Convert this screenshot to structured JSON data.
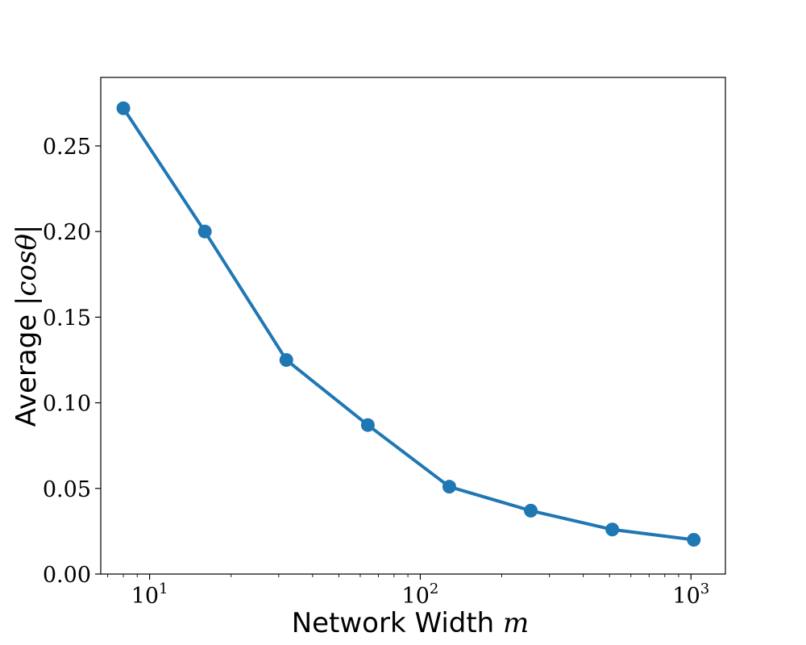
{
  "chart_data": {
    "type": "line",
    "xscale": "log",
    "x": [
      8,
      16,
      32,
      64,
      128,
      256,
      512,
      1024
    ],
    "series": [
      {
        "values": [
          0.272,
          0.2,
          0.125,
          0.087,
          0.051,
          0.037,
          0.026,
          0.02
        ]
      }
    ],
    "xlabel": {
      "text": "Network Width ",
      "math": "m"
    },
    "ylabel": {
      "text": "Average ",
      "math": "|cosθ|"
    },
    "xlim": [
      6.6,
      1340
    ],
    "ylim": [
      0,
      0.29
    ],
    "yticks": [
      "0.00",
      "0.05",
      "0.10",
      "0.15",
      "0.20",
      "0.25"
    ],
    "xticks": [
      {
        "base": "10",
        "exp": "1",
        "value": 10
      },
      {
        "base": "10",
        "exp": "2",
        "value": 100
      },
      {
        "base": "10",
        "exp": "3",
        "value": 1000
      }
    ],
    "grid": false,
    "color": "#1f77b4"
  }
}
